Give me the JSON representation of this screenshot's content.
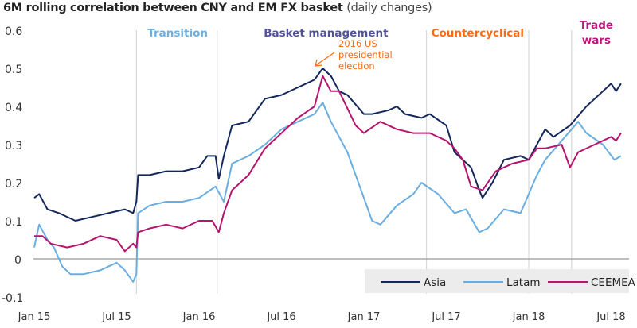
{
  "chart_data": {
    "type": "line",
    "title": "6M rolling correlation between CNY and EM FX basket",
    "subtitle": "(daily changes)",
    "xlabel": "",
    "ylabel": "",
    "ylim": [
      -0.1,
      0.6
    ],
    "yticks": [
      {
        "v": 0.6,
        "label": "0.6"
      },
      {
        "v": 0.5,
        "label": "0.5"
      },
      {
        "v": 0.4,
        "label": "0.4"
      },
      {
        "v": 0.3,
        "label": "0.3"
      },
      {
        "v": 0.2,
        "label": "0.2"
      },
      {
        "v": 0.1,
        "label": "0.1"
      },
      {
        "v": 0,
        "label": "0"
      },
      {
        "v": -0.1,
        "label": "-0.1"
      }
    ],
    "xlim": [
      2015.0,
      2018.6
    ],
    "xticks": [
      {
        "v": 2015.0,
        "label": "Jan 15"
      },
      {
        "v": 2015.5,
        "label": "Jul 15"
      },
      {
        "v": 2016.0,
        "label": "Jan 16"
      },
      {
        "v": 2016.5,
        "label": "Jul 16"
      },
      {
        "v": 2017.0,
        "label": "Jan 17"
      },
      {
        "v": 2017.5,
        "label": "Jul 17"
      },
      {
        "v": 2018.0,
        "label": "Jan 18"
      },
      {
        "v": 2018.5,
        "label": "Jul 18"
      }
    ],
    "phase_boundaries": [
      2015.62,
      2016.11,
      2017.38,
      2018.0,
      2018.26
    ],
    "phases": [
      {
        "label": "Transition",
        "center": 2015.87,
        "color": "#6fb0e0"
      },
      {
        "label": "Basket management",
        "center": 2016.77,
        "color": "#525199"
      },
      {
        "label": "Countercyclical",
        "center": 2017.69,
        "color": "#ff6a13"
      },
      {
        "label": "Trade",
        "label2": "wars",
        "center": 2018.41,
        "color": "#c0157a"
      }
    ],
    "annotation": {
      "lines": [
        "2016 US",
        "presidential",
        "election"
      ],
      "x": 2016.85,
      "y": 0.5,
      "color": "#ff6a13"
    },
    "legend_position": "bottom-right",
    "series": [
      {
        "name": "Asia",
        "color": "#14285c",
        "x": [
          2015.0,
          2015.03,
          2015.08,
          2015.15,
          2015.25,
          2015.35,
          2015.45,
          2015.55,
          2015.6,
          2015.62,
          2015.63,
          2015.7,
          2015.8,
          2015.9,
          2016.0,
          2016.05,
          2016.1,
          2016.12,
          2016.15,
          2016.2,
          2016.3,
          2016.4,
          2016.5,
          2016.6,
          2016.7,
          2016.75,
          2016.8,
          2016.85,
          2016.9,
          2017.0,
          2017.05,
          2017.15,
          2017.2,
          2017.25,
          2017.35,
          2017.4,
          2017.5,
          2017.55,
          2017.65,
          2017.7,
          2017.72,
          2017.78,
          2017.85,
          2017.95,
          2018.0,
          2018.05,
          2018.1,
          2018.15,
          2018.25,
          2018.35,
          2018.45,
          2018.5,
          2018.53,
          2018.56
        ],
        "values": [
          0.16,
          0.17,
          0.13,
          0.12,
          0.1,
          0.11,
          0.12,
          0.13,
          0.12,
          0.15,
          0.22,
          0.22,
          0.23,
          0.23,
          0.24,
          0.27,
          0.27,
          0.21,
          0.27,
          0.35,
          0.36,
          0.42,
          0.43,
          0.45,
          0.47,
          0.5,
          0.48,
          0.44,
          0.43,
          0.38,
          0.38,
          0.39,
          0.4,
          0.38,
          0.37,
          0.38,
          0.35,
          0.28,
          0.24,
          0.18,
          0.16,
          0.2,
          0.26,
          0.27,
          0.26,
          0.3,
          0.34,
          0.32,
          0.35,
          0.4,
          0.44,
          0.46,
          0.44,
          0.46
        ]
      },
      {
        "name": "Latam",
        "color": "#6aaee0",
        "x": [
          2015.0,
          2015.03,
          2015.08,
          2015.12,
          2015.17,
          2015.22,
          2015.3,
          2015.4,
          2015.5,
          2015.55,
          2015.6,
          2015.62,
          2015.63,
          2015.7,
          2015.8,
          2015.9,
          2016.0,
          2016.1,
          2016.15,
          2016.2,
          2016.3,
          2016.4,
          2016.5,
          2016.6,
          2016.7,
          2016.75,
          2016.8,
          2016.9,
          2017.0,
          2017.05,
          2017.1,
          2017.2,
          2017.3,
          2017.35,
          2017.45,
          2017.55,
          2017.62,
          2017.7,
          2017.75,
          2017.85,
          2017.95,
          2018.0,
          2018.05,
          2018.1,
          2018.2,
          2018.3,
          2018.35,
          2018.45,
          2018.52,
          2018.56
        ],
        "values": [
          0.03,
          0.09,
          0.05,
          0.03,
          -0.02,
          -0.04,
          -0.04,
          -0.03,
          -0.01,
          -0.03,
          -0.06,
          -0.04,
          0.12,
          0.14,
          0.15,
          0.15,
          0.16,
          0.19,
          0.15,
          0.25,
          0.27,
          0.3,
          0.34,
          0.36,
          0.38,
          0.41,
          0.36,
          0.28,
          0.16,
          0.1,
          0.09,
          0.14,
          0.17,
          0.2,
          0.17,
          0.12,
          0.13,
          0.07,
          0.08,
          0.13,
          0.12,
          0.17,
          0.22,
          0.26,
          0.31,
          0.36,
          0.33,
          0.3,
          0.26,
          0.27
        ]
      },
      {
        "name": "CEEMEA",
        "color": "#b5156e",
        "x": [
          2015.0,
          2015.05,
          2015.1,
          2015.2,
          2015.3,
          2015.4,
          2015.5,
          2015.55,
          2015.6,
          2015.62,
          2015.63,
          2015.7,
          2015.8,
          2015.9,
          2016.0,
          2016.08,
          2016.12,
          2016.15,
          2016.2,
          2016.3,
          2016.4,
          2016.5,
          2016.6,
          2016.7,
          2016.75,
          2016.8,
          2016.85,
          2016.95,
          2017.0,
          2017.1,
          2017.2,
          2017.3,
          2017.4,
          2017.5,
          2017.55,
          2017.6,
          2017.65,
          2017.72,
          2017.8,
          2017.9,
          2018.0,
          2018.05,
          2018.1,
          2018.2,
          2018.25,
          2018.3,
          2018.4,
          2018.5,
          2018.53,
          2018.56
        ],
        "values": [
          0.06,
          0.06,
          0.04,
          0.03,
          0.04,
          0.06,
          0.05,
          0.02,
          0.04,
          0.03,
          0.07,
          0.08,
          0.09,
          0.08,
          0.1,
          0.1,
          0.07,
          0.12,
          0.18,
          0.22,
          0.29,
          0.33,
          0.37,
          0.4,
          0.48,
          0.44,
          0.44,
          0.35,
          0.33,
          0.36,
          0.34,
          0.33,
          0.33,
          0.31,
          0.29,
          0.26,
          0.19,
          0.18,
          0.23,
          0.25,
          0.26,
          0.29,
          0.29,
          0.3,
          0.24,
          0.28,
          0.3,
          0.32,
          0.31,
          0.33
        ]
      }
    ]
  }
}
